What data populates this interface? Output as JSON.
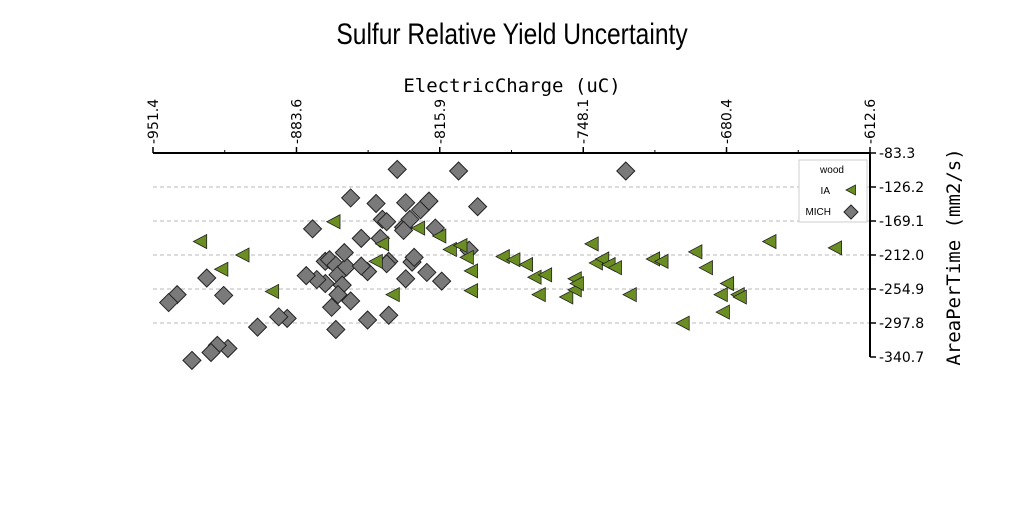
{
  "chart_data": {
    "type": "scatter",
    "title": "Sulfur Relative Yield Uncertainty",
    "xlabel": "ElectricCharge (uC)",
    "ylabel": "AreaPerTime (mm2/s)",
    "xlim": [
      -951.4,
      -612.6
    ],
    "ylim": [
      -340.7,
      -83.3
    ],
    "y_inverted": true,
    "x_axis_position": "top",
    "y_axis_position": "right",
    "x_ticks": [
      "-951.4",
      "-883.6",
      "-815.9",
      "-748.1",
      "-680.4",
      "-612.6"
    ],
    "y_ticks": [
      "-83.3",
      "-126.2",
      "-169.1",
      "-212.0",
      "-254.9",
      "-297.8",
      "-340.7"
    ],
    "grid": "horizontal dashed",
    "legend": {
      "title": "wood",
      "placement": "right",
      "entries": [
        "IA",
        "MICH"
      ]
    },
    "series": [
      {
        "name": "IA",
        "marker": "triangle-left",
        "color": "#6b8e23",
        "points": [
          [
            -929,
            -195
          ],
          [
            -919,
            -230
          ],
          [
            -909,
            -212
          ],
          [
            -895,
            -258
          ],
          [
            -866,
            -170
          ],
          [
            -846,
            -220
          ],
          [
            -843,
            -198
          ],
          [
            -838,
            -262
          ],
          [
            -826,
            -178
          ],
          [
            -816,
            -188
          ],
          [
            -811,
            -205
          ],
          [
            -806,
            -200
          ],
          [
            -803,
            -215
          ],
          [
            -801,
            -232
          ],
          [
            -801,
            -257
          ],
          [
            -786,
            -214
          ],
          [
            -781,
            -218
          ],
          [
            -775,
            -224
          ],
          [
            -771,
            -240
          ],
          [
            -769,
            -262
          ],
          [
            -766,
            -237
          ],
          [
            -756,
            -265
          ],
          [
            -752,
            -242
          ],
          [
            -752,
            -256
          ],
          [
            -751,
            -248
          ],
          [
            -744,
            -198
          ],
          [
            -742,
            -222
          ],
          [
            -739,
            -217
          ],
          [
            -736,
            -224
          ],
          [
            -733,
            -228
          ],
          [
            -726,
            -262
          ],
          [
            -715,
            -217
          ],
          [
            -711,
            -220
          ],
          [
            -701,
            -298
          ],
          [
            -695,
            -208
          ],
          [
            -690,
            -228
          ],
          [
            -680,
            -248
          ],
          [
            -682,
            -284
          ],
          [
            -675,
            -262
          ],
          [
            -674,
            -265
          ],
          [
            -683,
            -262
          ],
          [
            -660,
            -195
          ],
          [
            -629,
            -203
          ]
        ]
      },
      {
        "name": "MICH",
        "marker": "diamond",
        "color": "#7a7a7a",
        "points": [
          [
            -836,
            -104
          ],
          [
            -807,
            -106
          ],
          [
            -728,
            -106
          ],
          [
            -798,
            -151
          ],
          [
            -876,
            -179
          ],
          [
            -858,
            -140
          ],
          [
            -846,
            -147
          ],
          [
            -843,
            -167
          ],
          [
            -832,
            -146
          ],
          [
            -825,
            -155
          ],
          [
            -821,
            -144
          ],
          [
            -818,
            -178
          ],
          [
            -802,
            -206
          ],
          [
            -840,
            -220
          ],
          [
            -870,
            -220
          ],
          [
            -868,
            -218
          ],
          [
            -865,
            -225
          ],
          [
            -864,
            -237
          ],
          [
            -862,
            -250
          ],
          [
            -860,
            -227
          ],
          [
            -864,
            -262
          ],
          [
            -867,
            -278
          ],
          [
            -870,
            -248
          ],
          [
            -874,
            -243
          ],
          [
            -879,
            -238
          ],
          [
            -888,
            -292
          ],
          [
            -892,
            -290
          ],
          [
            -902,
            -303
          ],
          [
            -916,
            -330
          ],
          [
            -921,
            -326
          ],
          [
            -924,
            -335
          ],
          [
            -933,
            -345
          ],
          [
            -940,
            -262
          ],
          [
            -944,
            -272
          ],
          [
            -926,
            -241
          ],
          [
            -918,
            -263
          ],
          [
            -850,
            -233
          ],
          [
            -853,
            -226
          ],
          [
            -832,
            -242
          ],
          [
            -833,
            -177
          ],
          [
            -830,
            -167
          ],
          [
            -841,
            -170
          ],
          [
            -833,
            -181
          ],
          [
            -829,
            -221
          ],
          [
            -815,
            -245
          ],
          [
            -822,
            -234
          ],
          [
            -840,
            -288
          ],
          [
            -850,
            -294
          ],
          [
            -858,
            -270
          ],
          [
            -865,
            -306
          ],
          [
            -853,
            -191
          ],
          [
            -844,
            -191
          ],
          [
            -841,
            -223
          ],
          [
            -828,
            -215
          ],
          [
            -861,
            -209
          ]
        ]
      }
    ]
  }
}
